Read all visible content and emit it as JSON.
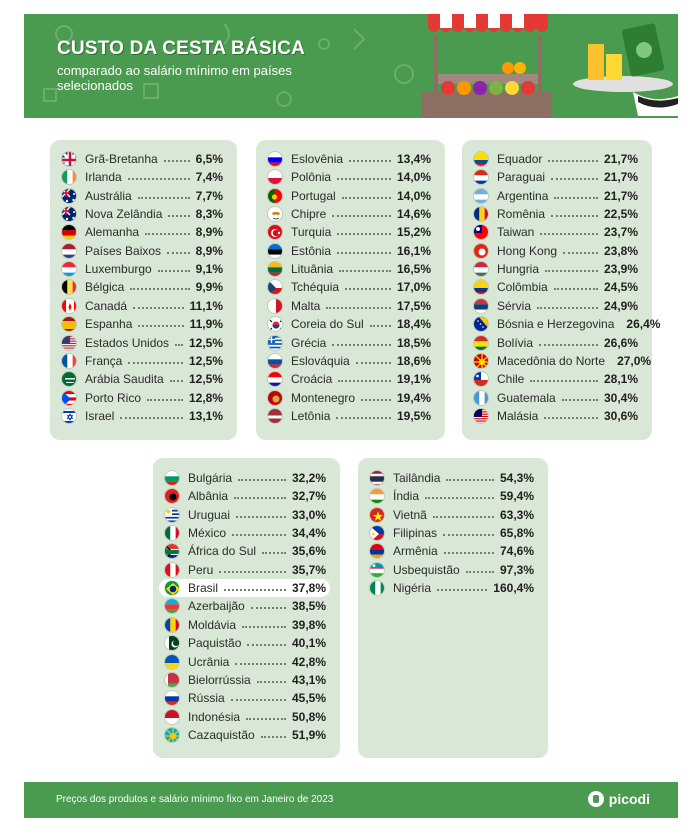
{
  "header": {
    "title": "CUSTO DA CESTA BÁSICA",
    "subtitle": "comparado ao salário mínimo em países selecionados"
  },
  "footer": {
    "note": "Preços dos produtos e salário mínimo fixo em Janeiro de 2023",
    "brand": "picodi"
  },
  "colors": {
    "green": "#4a9a4f",
    "panel": "#d9e7d6"
  },
  "chart_data": {
    "type": "table",
    "unit": "%",
    "highlight": "Brasil",
    "groups": [
      {
        "rows": [
          {
            "country": "Grã-Bretanha",
            "label": "6,5%",
            "value": 6.5,
            "flag": [
              "#012169",
              "#ffffff",
              "#c8102e"
            ],
            "style": "uk"
          },
          {
            "country": "Irlanda",
            "label": "7,4%",
            "value": 7.4,
            "flag": [
              "#169b62",
              "#ffffff",
              "#ff883e"
            ],
            "style": "v3"
          },
          {
            "country": "Austrália",
            "label": "7,7%",
            "value": 7.7,
            "flag": [
              "#012169",
              "#ffffff",
              "#e4002b"
            ],
            "style": "blue-ensign"
          },
          {
            "country": "Nova Zelândia",
            "label": "8,3%",
            "value": 8.3,
            "flag": [
              "#012169",
              "#ffffff",
              "#c8102e"
            ],
            "style": "blue-ensign"
          },
          {
            "country": "Alemanha",
            "label": "8,9%",
            "value": 8.9,
            "flag": [
              "#000000",
              "#dd0000",
              "#ffce00"
            ],
            "style": "h3"
          },
          {
            "country": "Países Baixos",
            "label": "8,9%",
            "value": 8.9,
            "flag": [
              "#ae1c28",
              "#ffffff",
              "#21468b"
            ],
            "style": "h3"
          },
          {
            "country": "Luxemburgo",
            "label": "9,1%",
            "value": 9.1,
            "flag": [
              "#ed2939",
              "#ffffff",
              "#00a1de"
            ],
            "style": "h3"
          },
          {
            "country": "Bélgica",
            "label": "9,9%",
            "value": 9.9,
            "flag": [
              "#000000",
              "#fae042",
              "#ed2939"
            ],
            "style": "v3"
          },
          {
            "country": "Canadá",
            "label": "11,1%",
            "value": 11.1,
            "flag": [
              "#ff0000",
              "#ffffff",
              "#ff0000"
            ],
            "style": "canada"
          },
          {
            "country": "Espanha",
            "label": "11,9%",
            "value": 11.9,
            "flag": [
              "#aa151b",
              "#f1bf00",
              "#aa151b"
            ],
            "style": "spain"
          },
          {
            "country": "Estados Unidos",
            "label": "12,5%",
            "value": 12.5,
            "flag": [
              "#b22234",
              "#ffffff",
              "#3c3b6e"
            ],
            "style": "usa"
          },
          {
            "country": "França",
            "label": "12,5%",
            "value": 12.5,
            "flag": [
              "#0055a4",
              "#ffffff",
              "#ef4135"
            ],
            "style": "v3"
          },
          {
            "country": "Arábia Saudita",
            "label": "12,5%",
            "value": 12.5,
            "flag": [
              "#006c35",
              "#ffffff",
              "#006c35"
            ],
            "style": "saudi"
          },
          {
            "country": "Porto Rico",
            "label": "12,8%",
            "value": 12.8,
            "flag": [
              "#ed0000",
              "#ffffff",
              "#0050f0"
            ],
            "style": "stripes-tri"
          },
          {
            "country": "Israel",
            "label": "13,1%",
            "value": 13.1,
            "flag": [
              "#ffffff",
              "#0038b8",
              "#ffffff"
            ],
            "style": "israel"
          }
        ]
      },
      {
        "rows": [
          {
            "country": "Eslovênia",
            "label": "13,4%",
            "value": 13.4,
            "flag": [
              "#ffffff",
              "#0000ff",
              "#ff0000"
            ],
            "style": "h3"
          },
          {
            "country": "Polônia",
            "label": "14,0%",
            "value": 14.0,
            "flag": [
              "#ffffff",
              "#dc143c",
              "#dc143c"
            ],
            "style": "h2"
          },
          {
            "country": "Portugal",
            "label": "14,0%",
            "value": 14.0,
            "flag": [
              "#006600",
              "#ff0000",
              "#ffcc00"
            ],
            "style": "portugal"
          },
          {
            "country": "Chipre",
            "label": "14,6%",
            "value": 14.6,
            "flag": [
              "#ffffff",
              "#d57800",
              "#4e5b31"
            ],
            "style": "cyprus"
          },
          {
            "country": "Turquia",
            "label": "15,2%",
            "value": 15.2,
            "flag": [
              "#e30a17",
              "#ffffff",
              "#e30a17"
            ],
            "style": "crescent"
          },
          {
            "country": "Estônia",
            "label": "16,1%",
            "value": 16.1,
            "flag": [
              "#0072ce",
              "#000000",
              "#ffffff"
            ],
            "style": "h3"
          },
          {
            "country": "Lituânia",
            "label": "16,5%",
            "value": 16.5,
            "flag": [
              "#fdb913",
              "#006a44",
              "#c1272d"
            ],
            "style": "h3"
          },
          {
            "country": "Tchéquia",
            "label": "17,0%",
            "value": 17.0,
            "flag": [
              "#ffffff",
              "#d7141a",
              "#11457e"
            ],
            "style": "czech"
          },
          {
            "country": "Malta",
            "label": "17,5%",
            "value": 17.5,
            "flag": [
              "#ffffff",
              "#cf142b",
              "#cf142b"
            ],
            "style": "v2"
          },
          {
            "country": "Coreia do Sul",
            "label": "18,4%",
            "value": 18.4,
            "flag": [
              "#ffffff",
              "#cd2e3a",
              "#0047a0"
            ],
            "style": "korea"
          },
          {
            "country": "Grécia",
            "label": "18,5%",
            "value": 18.5,
            "flag": [
              "#0d5eaf",
              "#ffffff",
              "#0d5eaf"
            ],
            "style": "stripes"
          },
          {
            "country": "Eslováquia",
            "label": "18,6%",
            "value": 18.6,
            "flag": [
              "#ffffff",
              "#0b4ea2",
              "#ee1c25"
            ],
            "style": "h3"
          },
          {
            "country": "Croácia",
            "label": "19,1%",
            "value": 19.1,
            "flag": [
              "#ff0000",
              "#ffffff",
              "#171796"
            ],
            "style": "h3"
          },
          {
            "country": "Montenegro",
            "label": "19,4%",
            "value": 19.4,
            "flag": [
              "#c40308",
              "#d4af37",
              "#c40308"
            ],
            "style": "emblem"
          },
          {
            "country": "Letônia",
            "label": "19,5%",
            "value": 19.5,
            "flag": [
              "#9e3039",
              "#ffffff",
              "#9e3039"
            ],
            "style": "latvia"
          }
        ]
      },
      {
        "rows": [
          {
            "country": "Equador",
            "label": "21,7%",
            "value": 21.7,
            "flag": [
              "#ffdd00",
              "#034ea2",
              "#ed1c24"
            ],
            "style": "colombia"
          },
          {
            "country": "Paraguai",
            "label": "21,7%",
            "value": 21.7,
            "flag": [
              "#d52b1e",
              "#ffffff",
              "#0038a8"
            ],
            "style": "h3"
          },
          {
            "country": "Argentina",
            "label": "21,7%",
            "value": 21.7,
            "flag": [
              "#74acdf",
              "#ffffff",
              "#74acdf"
            ],
            "style": "h3"
          },
          {
            "country": "Romênia",
            "label": "22,5%",
            "value": 22.5,
            "flag": [
              "#002b7f",
              "#fcd116",
              "#ce1126"
            ],
            "style": "v3"
          },
          {
            "country": "Taiwan",
            "label": "23,7%",
            "value": 23.7,
            "flag": [
              "#fe0000",
              "#000095",
              "#ffffff"
            ],
            "style": "taiwan"
          },
          {
            "country": "Hong Kong",
            "label": "23,8%",
            "value": 23.8,
            "flag": [
              "#de2910",
              "#ffffff",
              "#de2910"
            ],
            "style": "emblem"
          },
          {
            "country": "Hungria",
            "label": "23,9%",
            "value": 23.9,
            "flag": [
              "#ce2939",
              "#ffffff",
              "#477050"
            ],
            "style": "h3"
          },
          {
            "country": "Colômbia",
            "label": "24,5%",
            "value": 24.5,
            "flag": [
              "#fcd116",
              "#003893",
              "#ce1126"
            ],
            "style": "colombia"
          },
          {
            "country": "Sérvia",
            "label": "24,9%",
            "value": 24.9,
            "flag": [
              "#c6363c",
              "#0c4076",
              "#ffffff"
            ],
            "style": "h3"
          },
          {
            "country": "Bósnia e Herzegovina",
            "label": "26,4%",
            "value": 26.4,
            "flag": [
              "#002395",
              "#fecb00",
              "#ffffff"
            ],
            "style": "bosnia"
          },
          {
            "country": "Bolívia",
            "label": "26,6%",
            "value": 26.6,
            "flag": [
              "#d52b1e",
              "#f9e300",
              "#007934"
            ],
            "style": "h3"
          },
          {
            "country": "Macedônia do Norte",
            "label": "27,0%",
            "value": 27.0,
            "flag": [
              "#d20000",
              "#ffe600",
              "#d20000"
            ],
            "style": "sun"
          },
          {
            "country": "Chile",
            "label": "28,1%",
            "value": 28.1,
            "flag": [
              "#ffffff",
              "#d52b1e",
              "#0039a6"
            ],
            "style": "chile"
          },
          {
            "country": "Guatemala",
            "label": "30,4%",
            "value": 30.4,
            "flag": [
              "#4997d0",
              "#ffffff",
              "#4997d0"
            ],
            "style": "v3"
          },
          {
            "country": "Malásia",
            "label": "30,6%",
            "value": 30.6,
            "flag": [
              "#cc0001",
              "#ffffff",
              "#010066"
            ],
            "style": "usa"
          }
        ]
      },
      {
        "rows": [
          {
            "country": "Bulgária",
            "label": "32,2%",
            "value": 32.2,
            "flag": [
              "#ffffff",
              "#00966e",
              "#d62612"
            ],
            "style": "h3"
          },
          {
            "country": "Albânia",
            "label": "32,7%",
            "value": 32.7,
            "flag": [
              "#e41e20",
              "#000000",
              "#e41e20"
            ],
            "style": "emblem"
          },
          {
            "country": "Uruguai",
            "label": "33,0%",
            "value": 33.0,
            "flag": [
              "#ffffff",
              "#0038a8",
              "#fcd116"
            ],
            "style": "uruguay"
          },
          {
            "country": "México",
            "label": "34,4%",
            "value": 34.4,
            "flag": [
              "#006847",
              "#ffffff",
              "#ce1126"
            ],
            "style": "v3"
          },
          {
            "country": "África do Sul",
            "label": "35,6%",
            "value": 35.6,
            "flag": [
              "#007749",
              "#de3831",
              "#002395"
            ],
            "style": "sa"
          },
          {
            "country": "Peru",
            "label": "35,7%",
            "value": 35.7,
            "flag": [
              "#d91023",
              "#ffffff",
              "#d91023"
            ],
            "style": "v3"
          },
          {
            "country": "Brasil",
            "label": "37,8%",
            "value": 37.8,
            "flag": [
              "#009c3b",
              "#ffdf00",
              "#002776"
            ],
            "style": "brazil"
          },
          {
            "country": "Azerbaijão",
            "label": "38,5%",
            "value": 38.5,
            "flag": [
              "#00b5e2",
              "#ef3340",
              "#509e2f"
            ],
            "style": "h3"
          },
          {
            "country": "Moldávia",
            "label": "39,8%",
            "value": 39.8,
            "flag": [
              "#0046ae",
              "#ffd200",
              "#cc092f"
            ],
            "style": "v3"
          },
          {
            "country": "Paquistão",
            "label": "40,1%",
            "value": 40.1,
            "flag": [
              "#ffffff",
              "#01411c",
              "#01411c"
            ],
            "style": "pakistan"
          },
          {
            "country": "Ucrânia",
            "label": "42,8%",
            "value": 42.8,
            "flag": [
              "#0057b7",
              "#ffd700",
              "#ffd700"
            ],
            "style": "h2"
          },
          {
            "country": "Bielorrússia",
            "label": "43,1%",
            "value": 43.1,
            "flag": [
              "#c8313e",
              "#4aa657",
              "#ffffff"
            ],
            "style": "belarus"
          },
          {
            "country": "Rússia",
            "label": "45,5%",
            "value": 45.5,
            "flag": [
              "#ffffff",
              "#0039a6",
              "#d52b1e"
            ],
            "style": "h3"
          },
          {
            "country": "Indonésia",
            "label": "50,8%",
            "value": 50.8,
            "flag": [
              "#ce1126",
              "#ffffff",
              "#ffffff"
            ],
            "style": "h2"
          },
          {
            "country": "Cazaquistão",
            "label": "51,9%",
            "value": 51.9,
            "flag": [
              "#00afca",
              "#fec50c",
              "#00afca"
            ],
            "style": "sun"
          }
        ]
      },
      {
        "rows": [
          {
            "country": "Tailândia",
            "label": "54,3%",
            "value": 54.3,
            "flag": [
              "#a51931",
              "#f4f5f8",
              "#2d2a4a"
            ],
            "style": "thai"
          },
          {
            "country": "Índia",
            "label": "59,4%",
            "value": 59.4,
            "flag": [
              "#ff9933",
              "#ffffff",
              "#138808"
            ],
            "style": "h3"
          },
          {
            "country": "Vietnã",
            "label": "63,3%",
            "value": 63.3,
            "flag": [
              "#da251d",
              "#ffff00",
              "#da251d"
            ],
            "style": "star"
          },
          {
            "country": "Filipinas",
            "label": "65,8%",
            "value": 65.8,
            "flag": [
              "#0038a8",
              "#ce1126",
              "#ffffff"
            ],
            "style": "philippines"
          },
          {
            "country": "Armênia",
            "label": "74,6%",
            "value": 74.6,
            "flag": [
              "#d90012",
              "#0033a0",
              "#f2a800"
            ],
            "style": "h3"
          },
          {
            "country": "Usbequistão",
            "label": "97,3%",
            "value": 97.3,
            "flag": [
              "#1eb53a",
              "#ffffff",
              "#0099b5"
            ],
            "style": "uzbek"
          },
          {
            "country": "Nigéria",
            "label": "160,4%",
            "value": 160.4,
            "flag": [
              "#008751",
              "#ffffff",
              "#008751"
            ],
            "style": "v3"
          }
        ]
      }
    ]
  }
}
